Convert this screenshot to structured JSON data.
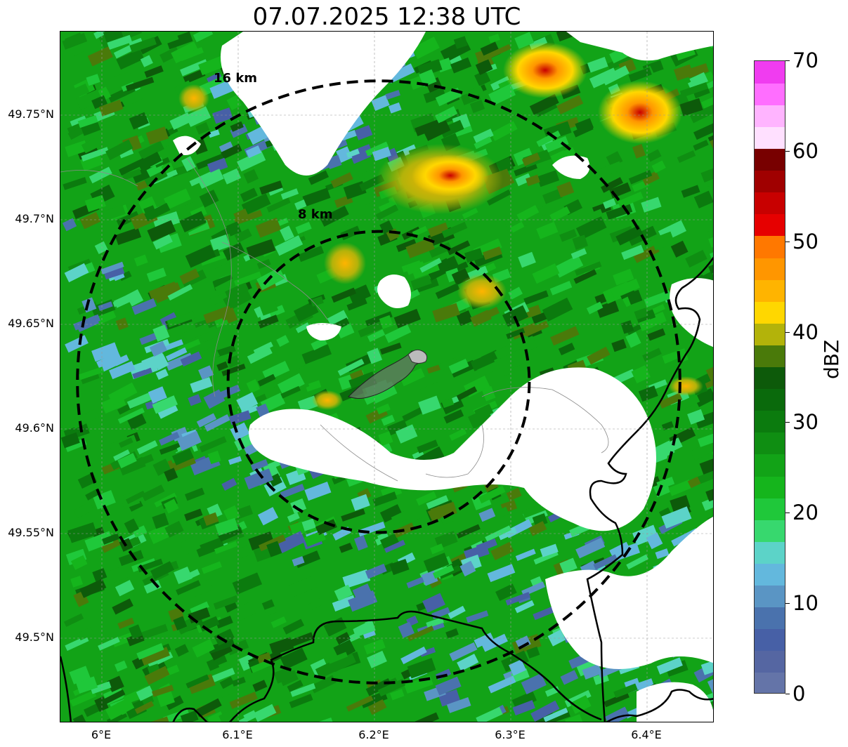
{
  "title": "07.07.2025 12:38 UTC",
  "map": {
    "lat_ticks": [
      {
        "value": 49.75,
        "label": "49.75°N"
      },
      {
        "value": 49.7,
        "label": "49.7°N"
      },
      {
        "value": 49.65,
        "label": "49.65°N"
      },
      {
        "value": 49.6,
        "label": "49.6°N"
      },
      {
        "value": 49.55,
        "label": "49.55°N"
      },
      {
        "value": 49.5,
        "label": "49.5°N"
      }
    ],
    "lon_ticks": [
      {
        "value": 6.0,
        "label": "6°E"
      },
      {
        "value": 6.1,
        "label": "6.1°E"
      },
      {
        "value": 6.2,
        "label": "6.2°E"
      },
      {
        "value": 6.3,
        "label": "6.3°E"
      },
      {
        "value": 6.4,
        "label": "6.4°E"
      }
    ],
    "range_rings": [
      {
        "label": "8 km",
        "radius_km": 8
      },
      {
        "label": "16 km",
        "radius_km": 16
      }
    ]
  },
  "colorbar": {
    "label": "dBZ",
    "min": 0,
    "max": 70,
    "ticks": [
      "0",
      "10",
      "20",
      "30",
      "40",
      "50",
      "60",
      "70"
    ],
    "colors": [
      "#6474a8",
      "#5566a2",
      "#4760a6",
      "#4a72ad",
      "#5a95c4",
      "#63b8dd",
      "#5cd3c8",
      "#37d86e",
      "#1fc83a",
      "#15b51c",
      "#12a317",
      "#0f8e12",
      "#0b7b0e",
      "#0a6a0c",
      "#0d5a0a",
      "#4a7a0a",
      "#b3b30a",
      "#ffd700",
      "#ffb400",
      "#ff9600",
      "#ff7800",
      "#e60000",
      "#c80000",
      "#a00000",
      "#780000",
      "#ffe0ff",
      "#ffb4ff",
      "#ff6eff",
      "#f03cf0"
    ]
  }
}
